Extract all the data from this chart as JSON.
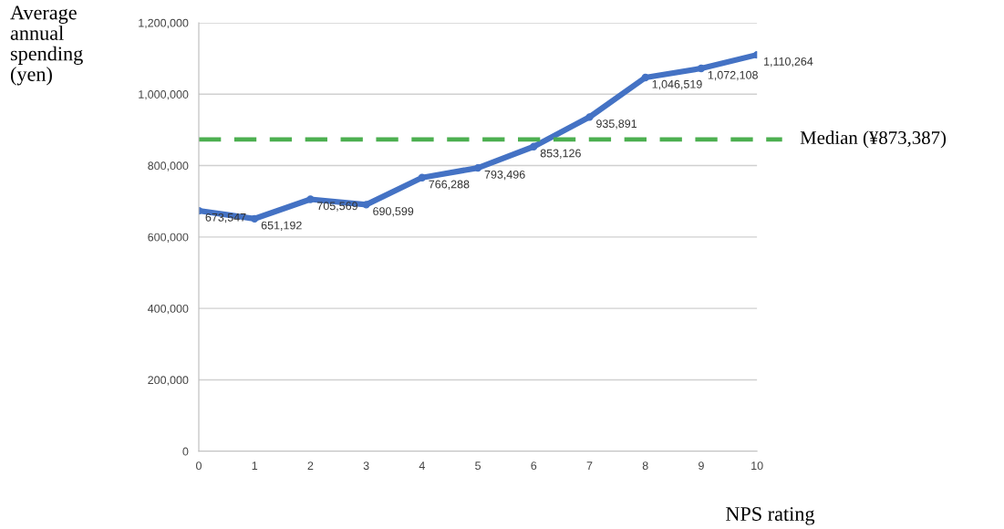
{
  "chart_data": {
    "type": "line",
    "ylabel": "Average\nannual\nspending\n(yen)",
    "xlabel": "NPS rating",
    "x": [
      0,
      1,
      2,
      3,
      4,
      5,
      6,
      7,
      8,
      9,
      10
    ],
    "series": [
      {
        "color": "#4472c4",
        "values": [
          673547,
          651192,
          705569,
          690599,
          766288,
          793496,
          853126,
          935891,
          1046519,
          1072108,
          1110264
        ],
        "value_labels": [
          "673,547",
          "651,192",
          "705,569",
          "690,599",
          "766,288",
          "793,496",
          "853,126",
          "935,891",
          "1,046,519",
          "1,072,108",
          "1,110,264"
        ]
      }
    ],
    "xlim": [
      0,
      10
    ],
    "xticks": [
      0,
      1,
      2,
      3,
      4,
      5,
      6,
      7,
      8,
      9,
      10
    ],
    "ylim": [
      0,
      1200000
    ],
    "yticks": [
      {
        "value": 0,
        "label": "0"
      },
      {
        "value": 200000,
        "label": "200,000"
      },
      {
        "value": 400000,
        "label": "400,000"
      },
      {
        "value": 600000,
        "label": "600,000"
      },
      {
        "value": 800000,
        "label": "800,000"
      },
      {
        "value": 1000000,
        "label": "1,000,000"
      },
      {
        "value": 1200000,
        "label": "1,200,000"
      }
    ],
    "ref_lines": [
      {
        "axis": "y",
        "value": 873387,
        "label": "Median (¥873,387)",
        "color": "#4caf50",
        "line_style": "dashed"
      }
    ],
    "grid": "y",
    "marker": "circle",
    "line_style": "solid",
    "legend": false
  }
}
